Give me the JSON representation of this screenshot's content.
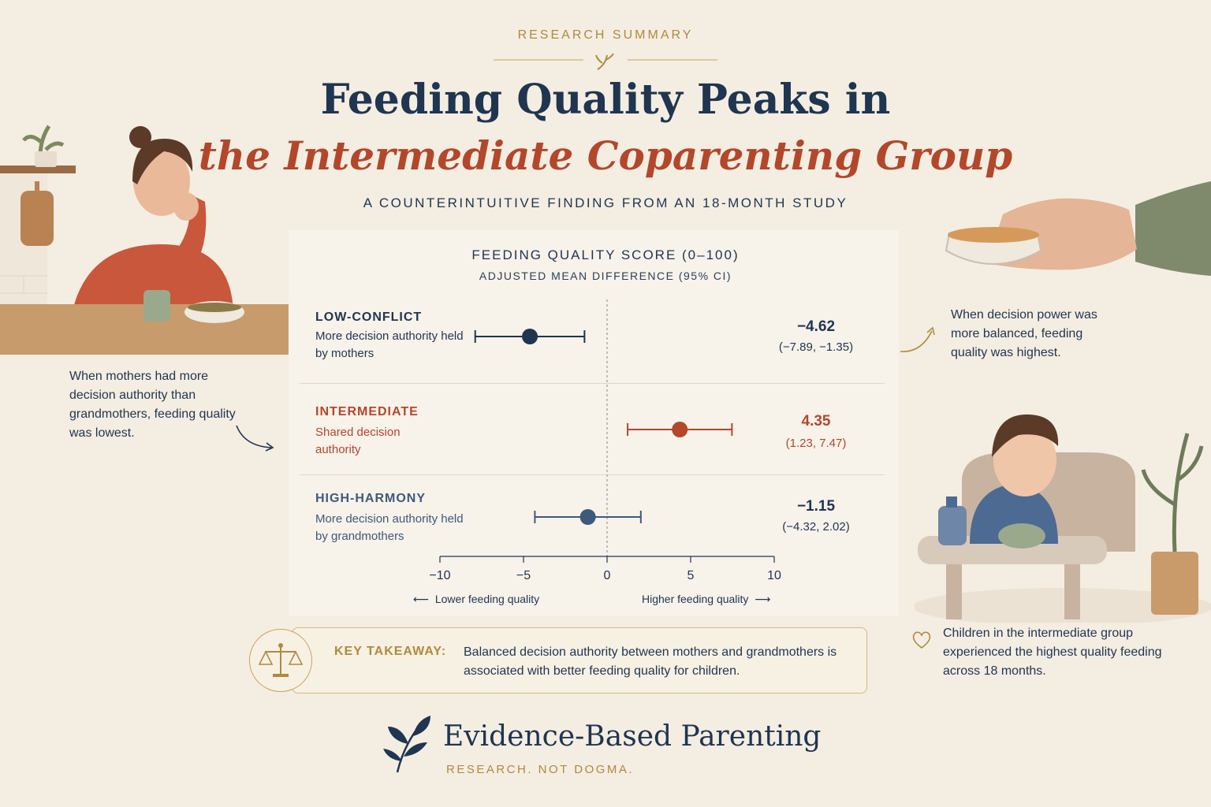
{
  "header": {
    "eyebrow": "RESEARCH SUMMARY",
    "title_line1": "Feeding Quality Peaks in",
    "title_line2": "the Intermediate Coparenting Group",
    "subtitle": "A COUNTERINTUITIVE FINDING FROM AN 18-MONTH STUDY"
  },
  "chart_data": {
    "type": "forest",
    "title": "FEEDING QUALITY SCORE (0–100)",
    "subtitle": "ADJUSTED MEAN DIFFERENCE (95% CI)",
    "xlim": [
      -10,
      10
    ],
    "ticks": [
      -10,
      -5,
      0,
      5,
      10
    ],
    "tick_labels": [
      "−10",
      "−5",
      "0",
      "5",
      "10"
    ],
    "reference_line": 0,
    "direction_left": "Lower feeding quality",
    "direction_right": "Higher feeding quality",
    "rows": [
      {
        "name": "LOW-CONFLICT",
        "description": "More decision authority held by mothers",
        "estimate": -4.62,
        "ci_low": -7.89,
        "ci_high": -1.35,
        "value_label": "−4.62",
        "ci_label": "(−7.89, −1.35)",
        "color": "#1f3550"
      },
      {
        "name": "INTERMEDIATE",
        "description": "Shared decision authority",
        "estimate": 4.35,
        "ci_low": 1.23,
        "ci_high": 7.47,
        "value_label": "4.35",
        "ci_label": "(1.23, 7.47)",
        "color": "#b3472b"
      },
      {
        "name": "HIGH-HARMONY",
        "description": "More decision authority held by grandmothers",
        "estimate": -1.15,
        "ci_low": -4.32,
        "ci_high": 2.02,
        "value_label": "−1.15",
        "ci_label": "(−4.32, 2.02)",
        "color": "#3d5a7a"
      }
    ]
  },
  "notes": {
    "left": "When mothers had more decision authority than grandmothers, feeding quality was lowest.",
    "right_top": "When decision power was more balanced, feeding quality was highest.",
    "right_bottom": "Children in the intermediate group experienced the highest quality feeding across 18 months."
  },
  "takeaway": {
    "label": "KEY TAKEAWAY:",
    "text": "Balanced decision authority between mothers and grandmothers is associated with better feeding quality for children."
  },
  "brand": {
    "name": "Evidence-Based Parenting",
    "tagline": "RESEARCH.  NOT DOGMA."
  },
  "illustrations": {
    "left": "mother-at-table-illustration",
    "right_top": "hand-offering-bowl-illustration",
    "right_bottom": "toddler-in-highchair-illustration"
  }
}
